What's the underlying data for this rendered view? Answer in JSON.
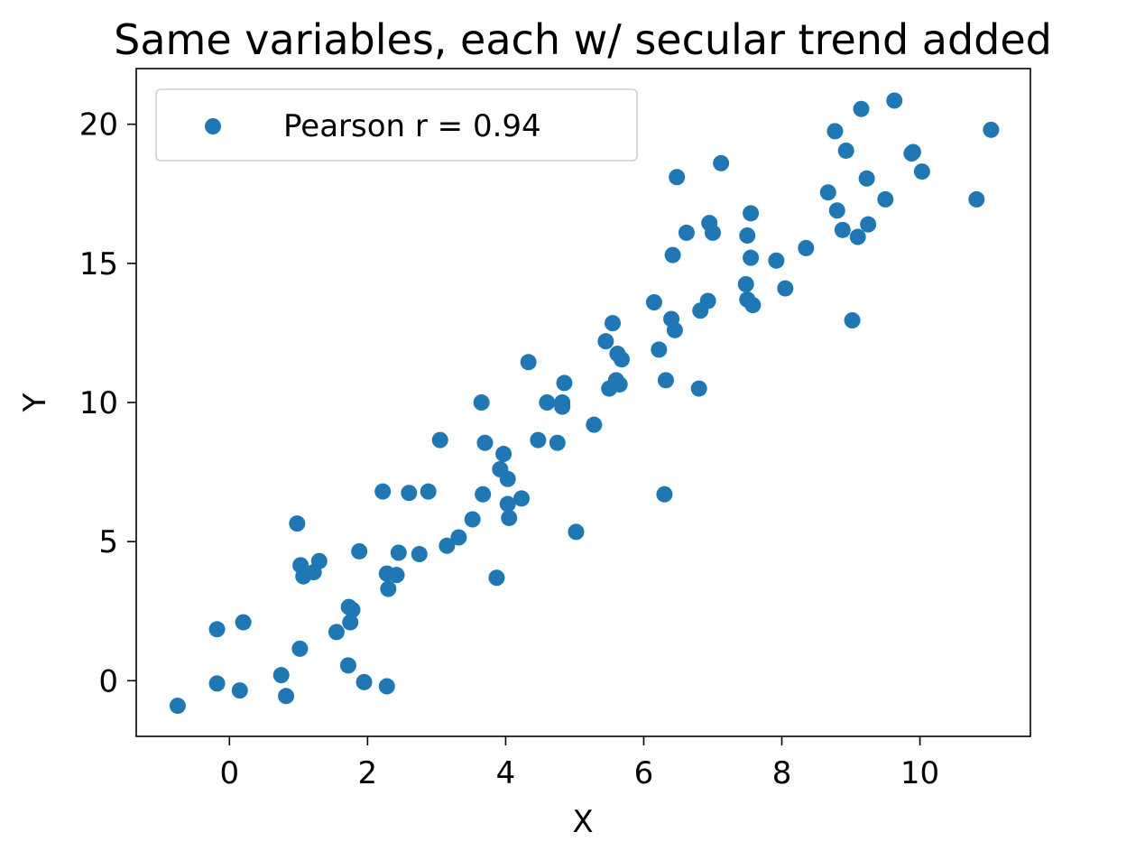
{
  "chart_data": {
    "type": "scatter",
    "title": "Same variables, each w/ secular trend added",
    "xlabel": "X",
    "ylabel": "Y",
    "xlim": [
      -1.35,
      11.6
    ],
    "ylim": [
      -2.0,
      22.0
    ],
    "xticks": [
      0,
      2,
      4,
      6,
      8,
      10
    ],
    "yticks": [
      0,
      5,
      10,
      15,
      20
    ],
    "xtick_labels": [
      "0",
      "2",
      "4",
      "6",
      "8",
      "10"
    ],
    "ytick_labels": [
      "0",
      "5",
      "10",
      "15",
      "20"
    ],
    "grid": false,
    "legend_position": "top-left",
    "colors": {
      "series": "#1f77b4"
    },
    "series": [
      {
        "name": "Pearson r = 0.94",
        "x": [
          -0.75,
          -0.18,
          -0.18,
          0.15,
          0.2,
          0.75,
          0.82,
          0.98,
          1.02,
          1.03,
          1.07,
          1.22,
          1.3,
          1.55,
          1.72,
          1.73,
          1.75,
          1.78,
          1.88,
          1.95,
          2.22,
          2.28,
          2.28,
          2.3,
          2.42,
          2.45,
          2.6,
          2.75,
          2.88,
          3.05,
          3.15,
          3.32,
          3.52,
          3.65,
          3.67,
          3.7,
          3.87,
          3.92,
          3.97,
          4.03,
          4.03,
          4.05,
          4.23,
          4.33,
          4.47,
          4.6,
          4.75,
          4.82,
          4.82,
          4.85,
          5.02,
          5.28,
          5.45,
          5.5,
          5.55,
          5.6,
          5.62,
          5.65,
          5.68,
          6.15,
          6.22,
          6.3,
          6.32,
          6.4,
          6.42,
          6.45,
          6.48,
          6.62,
          6.8,
          6.82,
          6.93,
          6.95,
          7.0,
          7.12,
          7.48,
          7.5,
          7.5,
          7.55,
          7.55,
          7.58,
          7.92,
          8.05,
          8.35,
          8.67,
          8.77,
          8.8,
          8.88,
          8.93,
          9.02,
          9.1,
          9.15,
          9.23,
          9.25,
          9.5,
          9.63,
          9.88,
          9.9,
          10.03,
          10.82,
          11.03
        ],
        "y": [
          -0.9,
          1.85,
          -0.1,
          -0.35,
          2.1,
          0.2,
          -0.55,
          5.65,
          1.15,
          4.15,
          3.75,
          3.9,
          4.3,
          1.75,
          0.55,
          2.65,
          2.1,
          2.55,
          4.65,
          -0.05,
          6.8,
          3.85,
          -0.2,
          3.3,
          3.8,
          4.6,
          6.75,
          4.55,
          6.8,
          8.65,
          4.85,
          5.15,
          5.8,
          10.0,
          6.7,
          8.55,
          3.7,
          7.6,
          8.15,
          7.25,
          6.35,
          5.85,
          6.55,
          11.45,
          8.65,
          10.0,
          8.55,
          10.0,
          9.85,
          10.7,
          5.35,
          9.2,
          12.2,
          10.5,
          12.85,
          10.8,
          11.75,
          10.65,
          11.55,
          13.6,
          11.9,
          6.7,
          10.8,
          13.0,
          15.3,
          12.6,
          18.1,
          16.1,
          10.5,
          13.3,
          13.65,
          16.45,
          16.1,
          18.6,
          14.25,
          13.7,
          16.0,
          16.8,
          15.2,
          13.5,
          15.1,
          14.1,
          15.55,
          17.55,
          19.75,
          16.9,
          16.2,
          19.05,
          12.95,
          15.95,
          20.55,
          18.05,
          16.4,
          17.3,
          20.85,
          18.95,
          19.0,
          18.3,
          17.3,
          19.8
        ]
      }
    ]
  }
}
